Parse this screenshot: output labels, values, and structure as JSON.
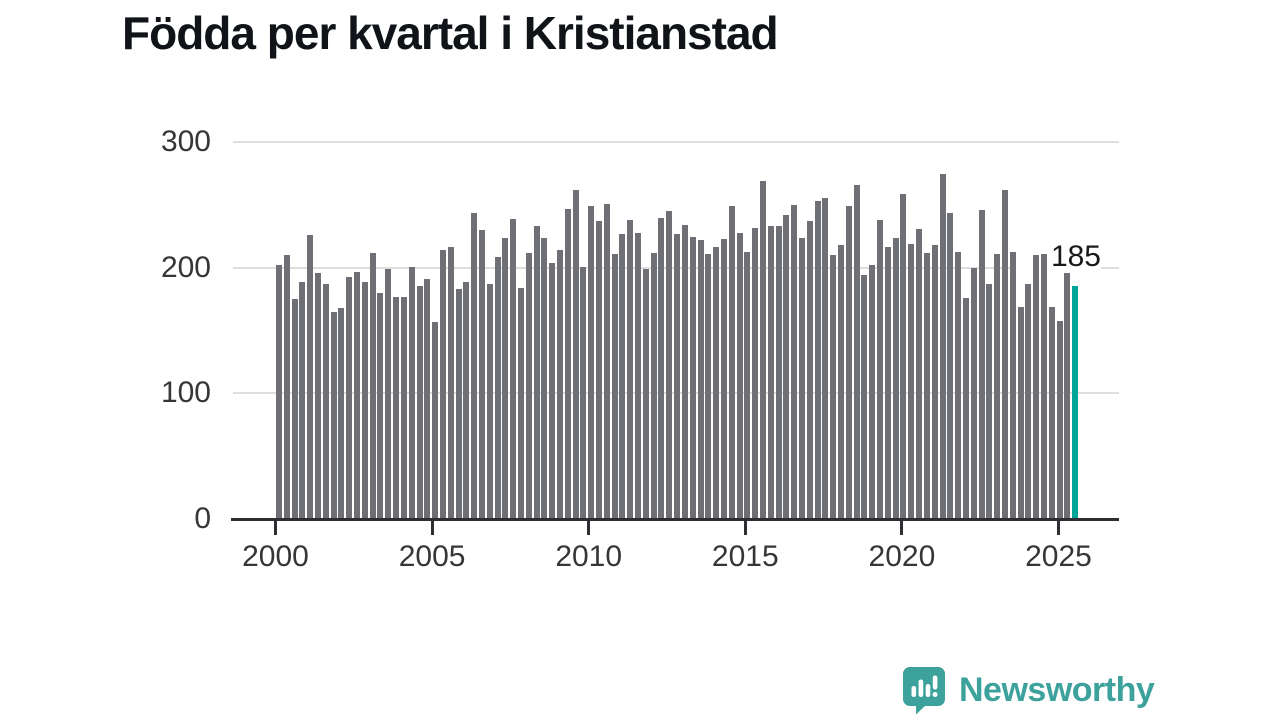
{
  "title": "Födda per kvartal i Kristianstad",
  "chart_data": {
    "type": "bar",
    "title": "Födda per kvartal i Kristianstad",
    "x_start": "2000-Q1",
    "x_end": "2025-Q3",
    "frequency": "quarterly",
    "values": [
      201,
      209,
      174,
      188,
      225,
      195,
      186,
      164,
      167,
      192,
      196,
      188,
      211,
      179,
      198,
      176,
      176,
      200,
      185,
      190,
      156,
      213,
      216,
      182,
      188,
      243,
      229,
      186,
      208,
      223,
      238,
      183,
      211,
      232,
      223,
      203,
      213,
      246,
      261,
      200,
      248,
      236,
      250,
      210,
      226,
      237,
      227,
      198,
      211,
      239,
      244,
      226,
      233,
      224,
      221,
      210,
      216,
      222,
      248,
      227,
      212,
      231,
      268,
      232,
      232,
      241,
      249,
      223,
      236,
      252,
      255,
      209,
      217,
      248,
      265,
      193,
      201,
      237,
      216,
      223,
      258,
      218,
      230,
      211,
      217,
      274,
      243,
      212,
      175,
      199,
      245,
      186,
      210,
      261,
      212,
      168,
      186,
      209,
      210,
      168,
      157,
      195,
      185
    ],
    "x_tick_labels": [
      "2000",
      "2005",
      "2010",
      "2015",
      "2020",
      "2025"
    ],
    "y_tick_labels": [
      "0",
      "100",
      "200",
      "300"
    ],
    "ylim": [
      0,
      300
    ],
    "grid": true,
    "legend": "none",
    "bar_color": "#6f6f76",
    "grid_color": "#dedede",
    "axis_color": "#2e2e32",
    "highlight": {
      "index": 102,
      "value": 185,
      "label": "185",
      "color": "#00a59a"
    }
  },
  "annotation": {
    "last_value_label": "185"
  },
  "branding": {
    "name": "Newsworthy",
    "text_color": "#3ca29b",
    "icon_color": "#3ca29b",
    "icon": "newsworthy-bar-chart-speech-bubble"
  }
}
